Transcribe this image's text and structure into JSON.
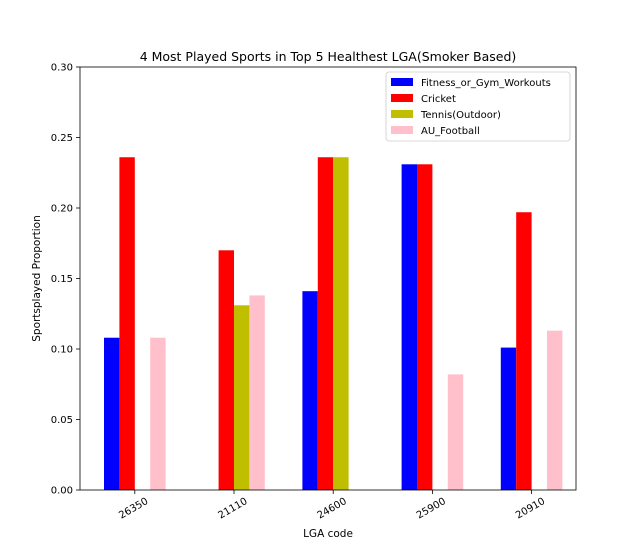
{
  "chart_data": {
    "type": "bar",
    "title": "4 Most Played Sports in Top 5 Healthest LGA(Smoker Based)",
    "xlabel": "LGA code",
    "ylabel": "Sportsplayed Proportion",
    "categories": [
      "26350",
      "21110",
      "24600",
      "25900",
      "20910"
    ],
    "ylim": [
      0,
      0.3
    ],
    "yticks": [
      "0.00",
      "0.05",
      "0.10",
      "0.15",
      "0.20",
      "0.25",
      "0.30"
    ],
    "grid": false,
    "legend_position": "top-right",
    "series": [
      {
        "name": "Fitness_or_Gym_Workouts",
        "color": "#0000ff",
        "values": [
          0.108,
          0,
          0.141,
          0.231,
          0.101
        ]
      },
      {
        "name": "Cricket",
        "color": "#ff0000",
        "values": [
          0.236,
          0.17,
          0.236,
          0.231,
          0.197
        ]
      },
      {
        "name": "Tennis(Outdoor)",
        "color": "#bfbf00",
        "values": [
          0,
          0.131,
          0.236,
          0,
          0
        ]
      },
      {
        "name": "AU_Football",
        "color": "#ffc0cb",
        "values": [
          0.108,
          0.138,
          0,
          0.082,
          0.113
        ]
      }
    ]
  }
}
